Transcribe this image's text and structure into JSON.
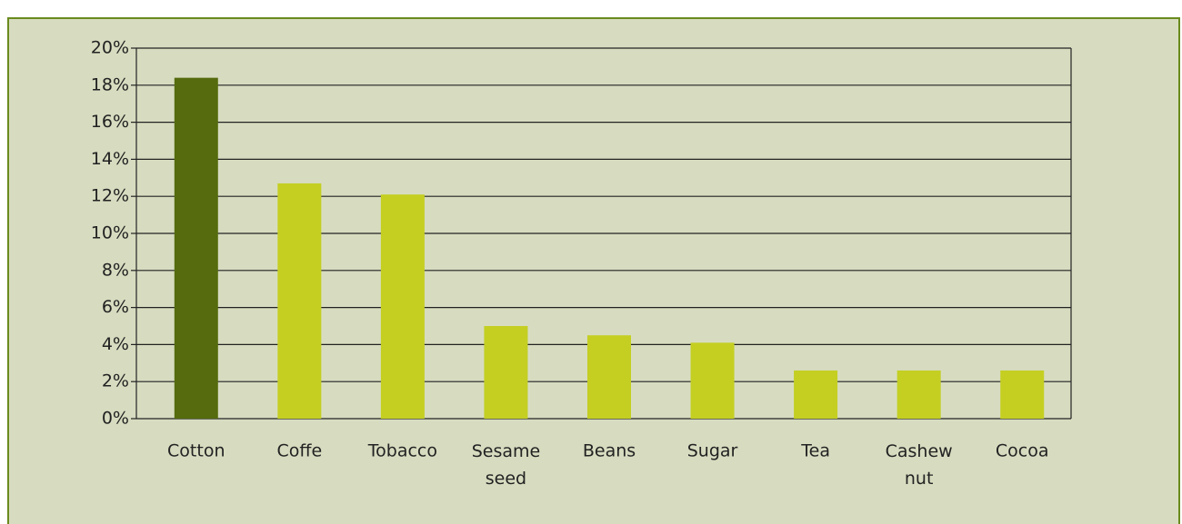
{
  "chart_data": {
    "type": "bar",
    "categories": [
      "Cotton",
      "Coffe",
      "Tobacco",
      "Sesame seed",
      "Beans",
      "Sugar",
      "Tea",
      "Cashew nut",
      "Cocoa"
    ],
    "values": [
      18.4,
      12.7,
      12.1,
      5.0,
      4.5,
      4.1,
      2.6,
      2.6,
      2.6
    ],
    "colors": [
      "#556b0d",
      "#c4cf22",
      "#c4cf22",
      "#c4cf22",
      "#c4cf22",
      "#c4cf22",
      "#c4cf22",
      "#c4cf22",
      "#c4cf22"
    ],
    "ylim": [
      0,
      20
    ],
    "yticks": [
      {
        "value": 0,
        "label": "0%"
      },
      {
        "value": 2,
        "label": "2%"
      },
      {
        "value": 4,
        "label": "4%"
      },
      {
        "value": 6,
        "label": "6%"
      },
      {
        "value": 8,
        "label": "8%"
      },
      {
        "value": 10,
        "label": "10%"
      },
      {
        "value": 12,
        "label": "12%"
      },
      {
        "value": 14,
        "label": "14%"
      },
      {
        "value": 16,
        "label": "16%"
      },
      {
        "value": 18,
        "label": "18%"
      },
      {
        "value": 20,
        "label": "20%"
      }
    ],
    "grid": true
  }
}
